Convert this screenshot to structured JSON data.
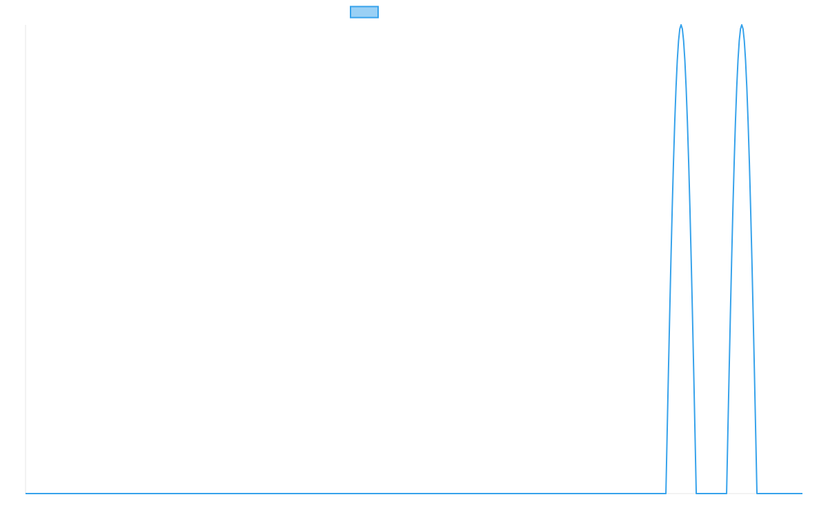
{
  "chart_data": {
    "type": "line",
    "title": "",
    "xlabel": "",
    "ylabel": "",
    "xlim": [
      0,
      128
    ],
    "ylim": [
      0,
      1
    ],
    "grid": false,
    "legend": {
      "placement": "top-center",
      "entries": [
        {
          "name": "",
          "color": "#36a2eb",
          "fill": "#9ad0f5"
        }
      ]
    },
    "series": [
      {
        "name": "",
        "color": "#36a2eb",
        "peaks": [
          {
            "start": 105.5,
            "center": 108,
            "end": 110.5,
            "value": 1
          },
          {
            "start": 115.5,
            "center": 118,
            "end": 120.5,
            "value": 1
          }
        ],
        "baseline": 0
      }
    ]
  }
}
